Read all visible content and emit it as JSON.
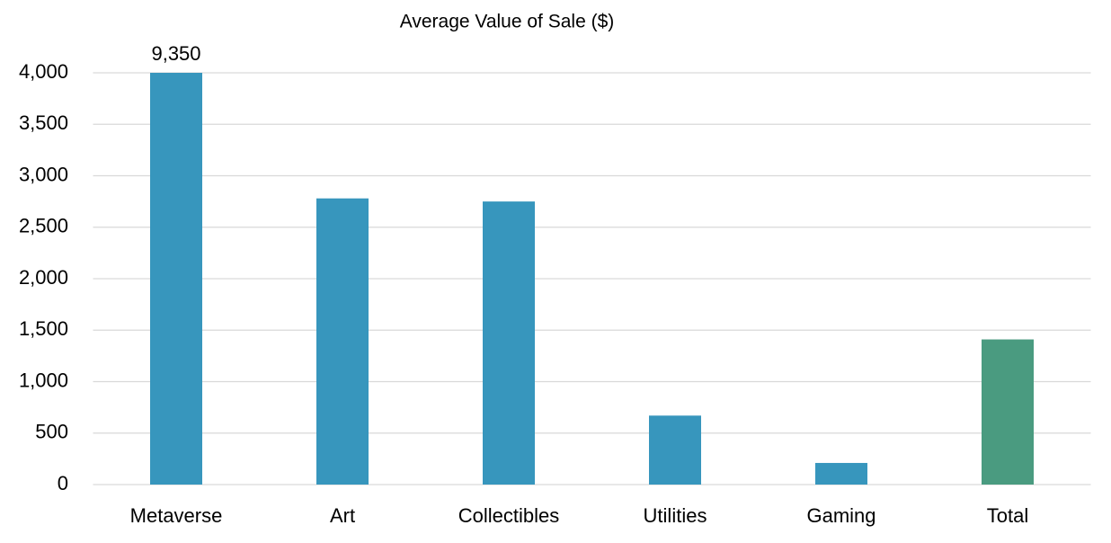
{
  "chart_data": {
    "type": "bar",
    "title": "Average Value of Sale ($)",
    "categories": [
      "Metaverse",
      "Art",
      "Collectibles",
      "Utilities",
      "Gaming",
      "Total"
    ],
    "values": [
      9350,
      2780,
      2750,
      670,
      210,
      1410
    ],
    "value_labels": [
      "9,350",
      null,
      null,
      null,
      null,
      null
    ],
    "colors": [
      "#3796bd",
      "#3796bd",
      "#3796bd",
      "#3796bd",
      "#3796bd",
      "#4a9b80"
    ],
    "ylim": [
      0,
      4000
    ],
    "yticks": [
      0,
      500,
      {
        "value": 1000,
        "label": "1,000"
      },
      {
        "value": 1500,
        "label": "1,500"
      },
      {
        "value": 2000,
        "label": "2,000"
      },
      {
        "value": 2500,
        "label": "2,500"
      },
      {
        "value": 3000,
        "label": "3,000"
      },
      {
        "value": 3500,
        "label": "3,500"
      },
      {
        "value": 4000,
        "label": "4,000"
      }
    ],
    "grid": true
  }
}
